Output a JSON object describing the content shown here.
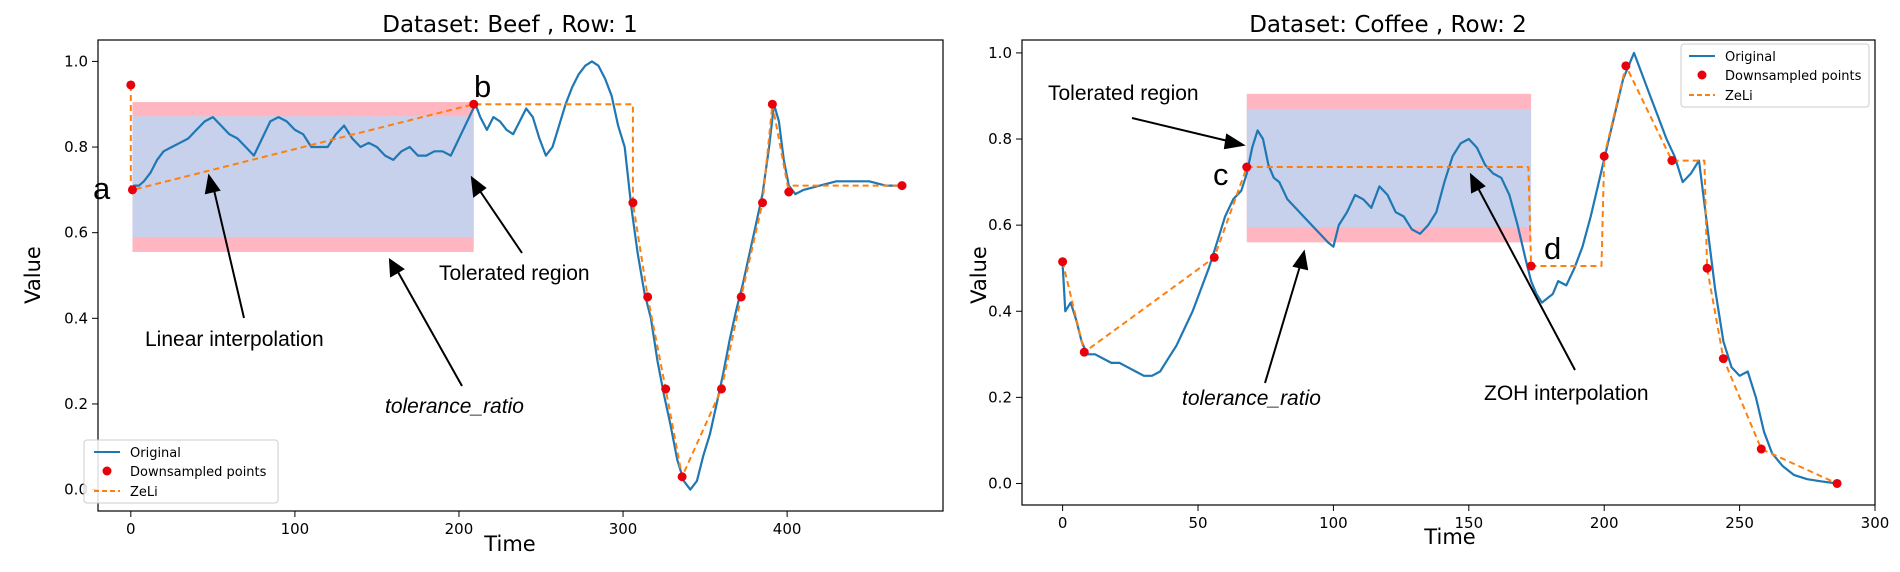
{
  "chart_data": [
    {
      "type": "line",
      "title": "Dataset: Beef , Row: 1",
      "xlabel": "Time",
      "ylabel": "Value",
      "xlim": [
        -20,
        495
      ],
      "ylim": [
        -0.05,
        1.05
      ],
      "xticks": [
        0,
        100,
        200,
        300,
        400
      ],
      "yticks": [
        0.0,
        0.2,
        0.4,
        0.6,
        0.8,
        1.0
      ],
      "ytick_labels": [
        "0.0",
        "0.2",
        "0.4",
        "0.6",
        "0.8",
        "1.0"
      ],
      "legend_position": "lower-left",
      "series": [
        {
          "name": "Original",
          "kind": "line",
          "color": "#1f77b4",
          "x": [
            0,
            2,
            5,
            8,
            12,
            16,
            20,
            25,
            30,
            35,
            40,
            45,
            50,
            55,
            60,
            65,
            70,
            75,
            80,
            85,
            90,
            95,
            100,
            105,
            110,
            115,
            120,
            125,
            130,
            135,
            140,
            145,
            150,
            155,
            160,
            165,
            170,
            175,
            180,
            185,
            190,
            195,
            200,
            205,
            210,
            213,
            217,
            221,
            225,
            229,
            233,
            237,
            241,
            245,
            249,
            253,
            257,
            261,
            265,
            269,
            273,
            277,
            281,
            285,
            289,
            293,
            297,
            301,
            305,
            309,
            313,
            317,
            321,
            325,
            329,
            333,
            337,
            341,
            345,
            349,
            353,
            357,
            361,
            365,
            369,
            373,
            377,
            381,
            385,
            389,
            392,
            395,
            398,
            401,
            405,
            410,
            420,
            430,
            440,
            450,
            460,
            470
          ],
          "y": [
            0.7,
            0.71,
            0.71,
            0.72,
            0.74,
            0.77,
            0.79,
            0.8,
            0.81,
            0.82,
            0.84,
            0.86,
            0.87,
            0.85,
            0.83,
            0.82,
            0.8,
            0.78,
            0.82,
            0.86,
            0.87,
            0.86,
            0.84,
            0.83,
            0.8,
            0.8,
            0.8,
            0.83,
            0.85,
            0.82,
            0.8,
            0.81,
            0.8,
            0.78,
            0.77,
            0.79,
            0.8,
            0.78,
            0.78,
            0.79,
            0.79,
            0.78,
            0.82,
            0.86,
            0.9,
            0.87,
            0.84,
            0.87,
            0.86,
            0.84,
            0.83,
            0.86,
            0.89,
            0.87,
            0.82,
            0.78,
            0.8,
            0.85,
            0.9,
            0.94,
            0.97,
            0.99,
            1.0,
            0.99,
            0.96,
            0.92,
            0.85,
            0.8,
            0.66,
            0.55,
            0.46,
            0.4,
            0.3,
            0.22,
            0.15,
            0.07,
            0.02,
            0.0,
            0.02,
            0.08,
            0.13,
            0.2,
            0.27,
            0.35,
            0.42,
            0.48,
            0.55,
            0.62,
            0.69,
            0.8,
            0.9,
            0.86,
            0.77,
            0.71,
            0.69,
            0.7,
            0.71,
            0.72,
            0.72,
            0.72,
            0.71,
            0.71
          ]
        },
        {
          "name": "Downsampled points",
          "kind": "points",
          "color": "#e8000b",
          "x": [
            0,
            1,
            209,
            306,
            315,
            326,
            336,
            360,
            372,
            385,
            391,
            401,
            470
          ],
          "y": [
            0.945,
            0.7,
            0.9,
            0.67,
            0.45,
            0.235,
            0.03,
            0.235,
            0.45,
            0.67,
            0.9,
            0.695,
            0.71
          ]
        },
        {
          "name": "ZeLi",
          "kind": "dashed",
          "color": "#ff7f0e",
          "x": [
            0,
            0,
            1,
            209,
            305,
            306,
            306,
            315,
            326,
            336,
            360,
            372,
            385,
            391,
            401,
            401,
            470
          ],
          "y": [
            0.945,
            0.7,
            0.7,
            0.9,
            0.9,
            0.9,
            0.67,
            0.45,
            0.235,
            0.03,
            0.235,
            0.45,
            0.67,
            0.9,
            0.695,
            0.71,
            0.71
          ]
        }
      ],
      "regions": {
        "outer": {
          "x0": 1,
          "x1": 209,
          "y0": 0.555,
          "y1": 0.905,
          "color": "#ffb6c1"
        },
        "inner": {
          "x0": 1,
          "x1": 209,
          "y0": 0.59,
          "y1": 0.872,
          "color": "#c8d1eb"
        }
      },
      "annotations": {
        "letter_a": "a",
        "letter_b": "b",
        "tolerated_region": "Tolerated region",
        "linear_interpolation": "Linear interpolation",
        "tolerance_ratio": "tolerance_ratio"
      }
    },
    {
      "type": "line",
      "title": "Dataset: Coffee , Row: 2",
      "xlabel": "Time",
      "ylabel": "Value",
      "xlim": [
        -15,
        300
      ],
      "ylim": [
        -0.05,
        1.03
      ],
      "xticks": [
        0,
        50,
        100,
        150,
        200,
        250,
        300
      ],
      "yticks": [
        0.0,
        0.2,
        0.4,
        0.6,
        0.8,
        1.0
      ],
      "ytick_labels": [
        "0.0",
        "0.2",
        "0.4",
        "0.6",
        "0.8",
        "1.0"
      ],
      "legend_position": "top-right",
      "series": [
        {
          "name": "Original",
          "kind": "line",
          "color": "#1f77b4",
          "x": [
            0,
            1,
            3,
            5,
            7,
            9,
            12,
            15,
            18,
            21,
            24,
            27,
            30,
            33,
            36,
            39,
            42,
            45,
            48,
            51,
            54,
            57,
            60,
            63,
            66,
            68,
            70,
            72,
            74,
            76,
            78,
            80,
            83,
            86,
            89,
            92,
            95,
            98,
            100,
            102,
            105,
            108,
            111,
            114,
            117,
            120,
            123,
            126,
            129,
            132,
            135,
            138,
            141,
            144,
            147,
            150,
            153,
            156,
            159,
            162,
            165,
            168,
            171,
            173,
            175,
            177,
            179,
            181,
            183,
            186,
            189,
            192,
            195,
            198,
            201,
            204,
            207,
            209,
            211,
            214,
            217,
            220,
            223,
            226,
            229,
            232,
            235,
            238,
            241,
            244,
            247,
            250,
            253,
            256,
            259,
            262,
            266,
            270,
            275,
            280,
            286
          ],
          "y": [
            0.51,
            0.4,
            0.42,
            0.38,
            0.33,
            0.3,
            0.3,
            0.29,
            0.28,
            0.28,
            0.27,
            0.26,
            0.25,
            0.25,
            0.26,
            0.29,
            0.32,
            0.36,
            0.4,
            0.45,
            0.5,
            0.56,
            0.62,
            0.66,
            0.68,
            0.72,
            0.78,
            0.82,
            0.8,
            0.74,
            0.71,
            0.7,
            0.66,
            0.64,
            0.62,
            0.6,
            0.58,
            0.56,
            0.55,
            0.6,
            0.63,
            0.67,
            0.66,
            0.64,
            0.69,
            0.67,
            0.63,
            0.62,
            0.59,
            0.58,
            0.6,
            0.63,
            0.7,
            0.76,
            0.79,
            0.8,
            0.78,
            0.74,
            0.72,
            0.71,
            0.67,
            0.6,
            0.52,
            0.47,
            0.44,
            0.42,
            0.43,
            0.44,
            0.47,
            0.46,
            0.5,
            0.55,
            0.62,
            0.7,
            0.78,
            0.86,
            0.94,
            0.97,
            1.0,
            0.95,
            0.9,
            0.85,
            0.8,
            0.76,
            0.7,
            0.72,
            0.75,
            0.6,
            0.45,
            0.33,
            0.27,
            0.25,
            0.26,
            0.2,
            0.12,
            0.07,
            0.04,
            0.02,
            0.01,
            0.005,
            0.0
          ]
        },
        {
          "name": "Downsampled points",
          "kind": "points",
          "color": "#e8000b",
          "x": [
            0,
            8,
            56,
            68,
            173,
            200,
            208,
            225,
            238,
            244,
            258,
            286
          ],
          "y": [
            0.515,
            0.305,
            0.525,
            0.735,
            0.505,
            0.76,
            0.97,
            0.75,
            0.5,
            0.29,
            0.08,
            0.0
          ]
        },
        {
          "name": "ZeLi",
          "kind": "dashed",
          "color": "#ff7f0e",
          "x": [
            0,
            8,
            56,
            68,
            172,
            173,
            199,
            200,
            208,
            225,
            237,
            238,
            244,
            258,
            286
          ],
          "y": [
            0.515,
            0.305,
            0.525,
            0.735,
            0.735,
            0.505,
            0.505,
            0.76,
            0.97,
            0.75,
            0.75,
            0.5,
            0.29,
            0.08,
            0.0
          ]
        }
      ],
      "regions": {
        "outer": {
          "x0": 68,
          "x1": 173,
          "y0": 0.56,
          "y1": 0.905,
          "color": "#ffb6c1"
        },
        "inner": {
          "x0": 68,
          "x1": 173,
          "y0": 0.595,
          "y1": 0.87,
          "color": "#c8d1eb"
        }
      },
      "annotations": {
        "letter_c": "c",
        "letter_d": "d",
        "tolerated_region": "Tolerated region",
        "tolerance_ratio": "tolerance_ratio",
        "zoh_interpolation": "ZOH interpolation"
      }
    }
  ]
}
